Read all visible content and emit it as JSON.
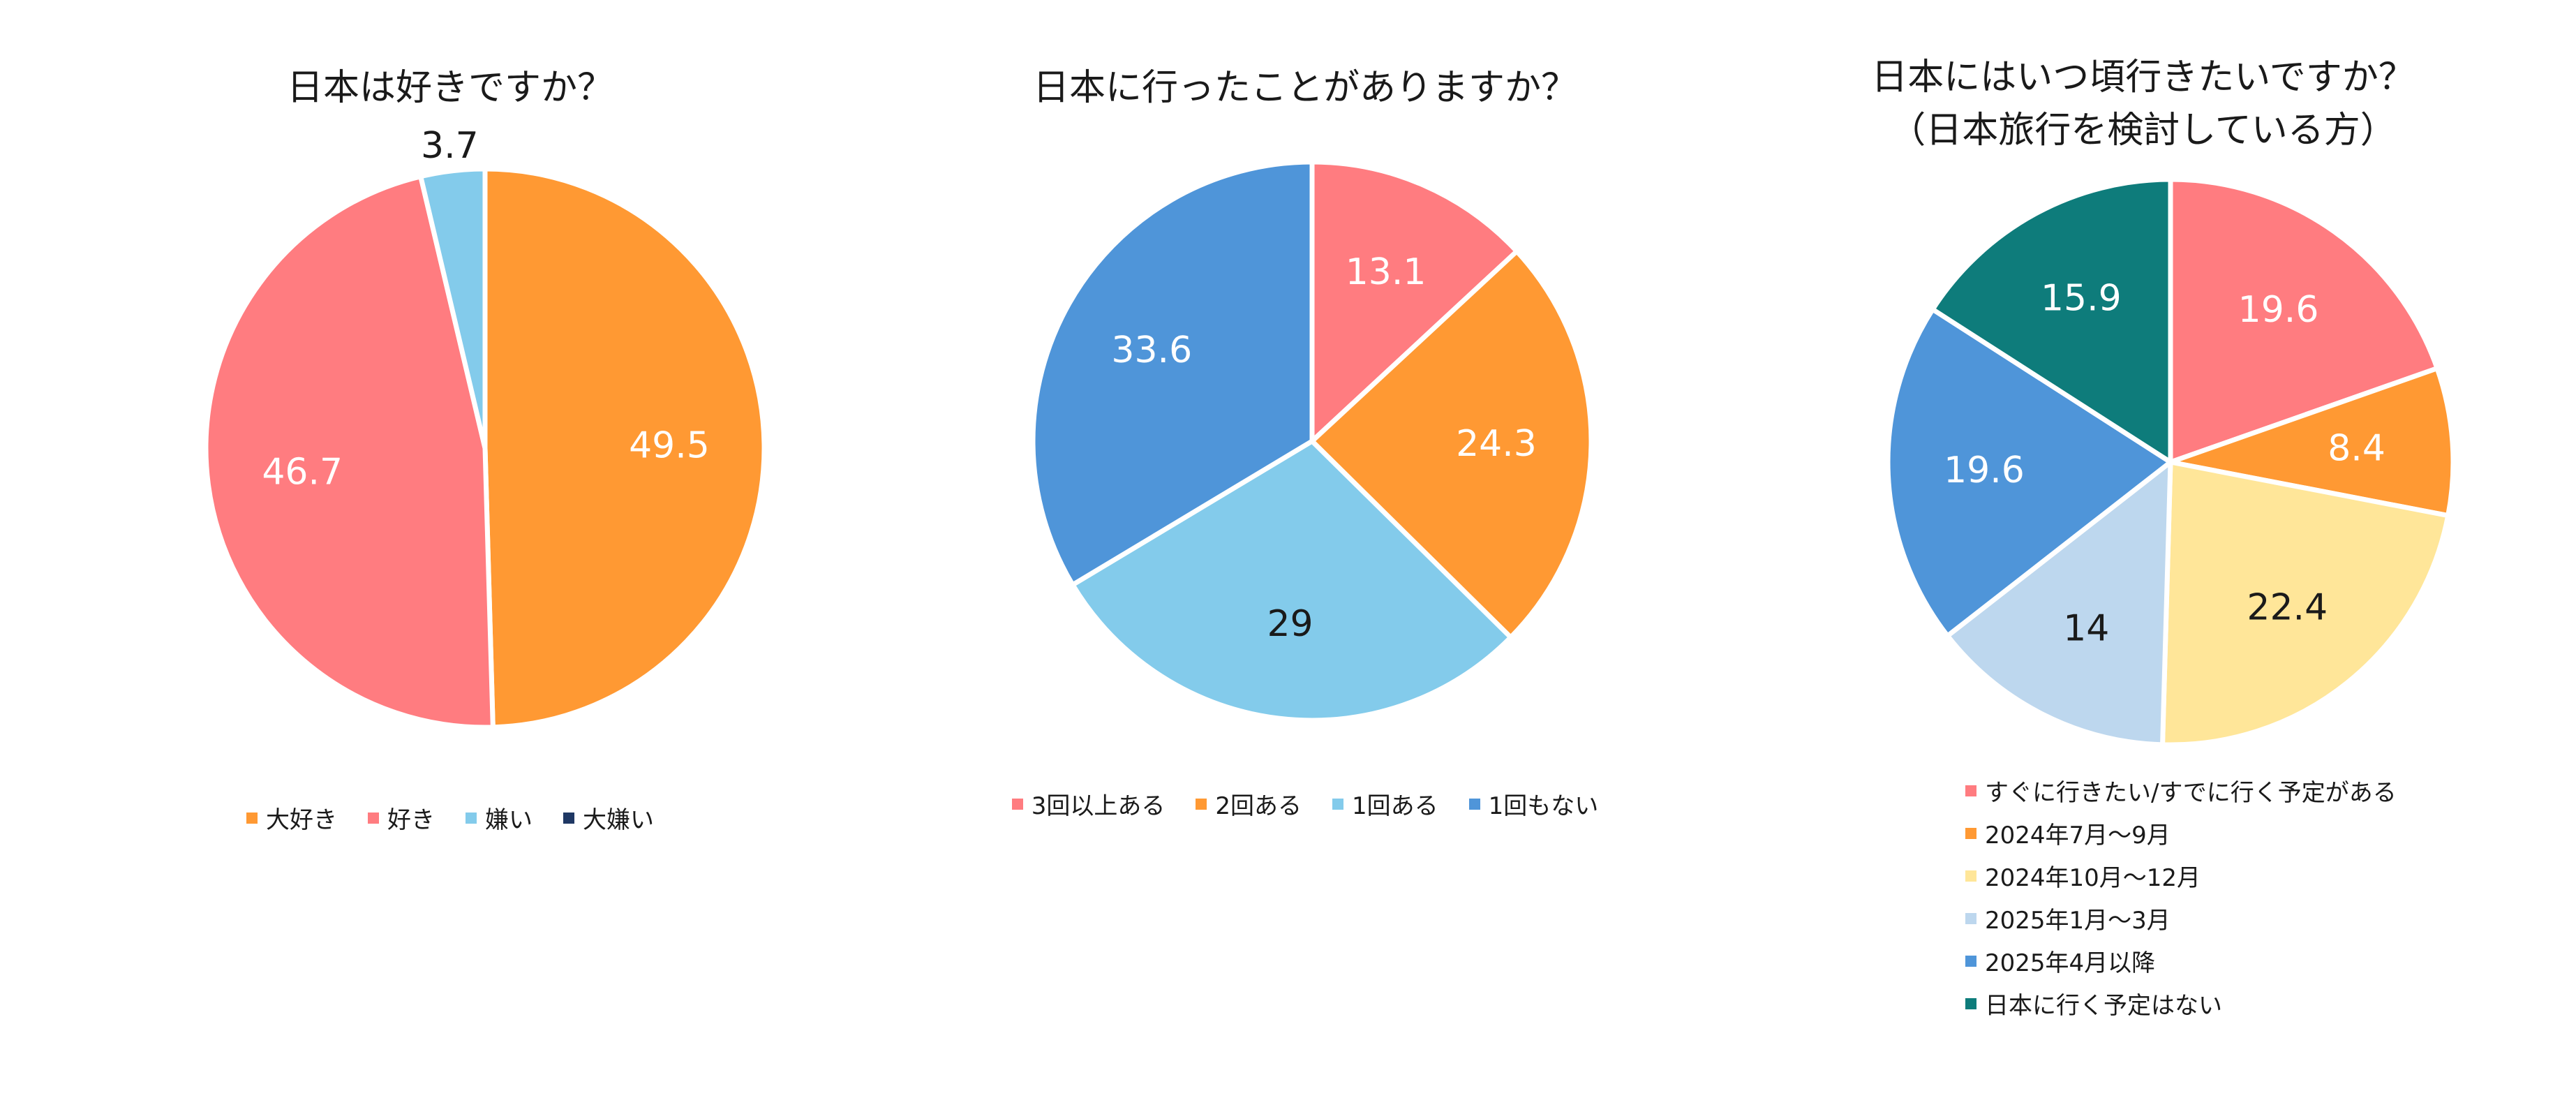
{
  "chart_data": [
    {
      "type": "pie",
      "title": "日本は好きですか？",
      "categories": [
        "大好き",
        "好き",
        "嫌い",
        "大嫌い"
      ],
      "values": [
        49.5,
        46.7,
        3.7,
        0
      ],
      "labels": [
        "49.5",
        "46.7",
        "3.7",
        ""
      ],
      "colors": [
        "#FF9933",
        "#FF7C80",
        "#83CBEB",
        "#1F3864"
      ],
      "label_colors": [
        "#ffffff",
        "#ffffff",
        "#1a1a1a",
        "#1a1a1a"
      ],
      "legend_position": "bottom"
    },
    {
      "type": "pie",
      "title": "日本に行ったことがありますか？",
      "categories": [
        "3回以上ある",
        "2回ある",
        "1回ある",
        "1回もない"
      ],
      "values": [
        13.1,
        24.3,
        29,
        33.6
      ],
      "labels": [
        "13.1",
        "24.3",
        "29",
        "33.6"
      ],
      "colors": [
        "#FF7C80",
        "#FF9933",
        "#83CBEB",
        "#4F95D9"
      ],
      "label_colors": [
        "#ffffff",
        "#ffffff",
        "#1a1a1a",
        "#ffffff"
      ],
      "legend_position": "bottom"
    },
    {
      "type": "pie",
      "title": "日本にはいつ頃行きたいですか？",
      "subtitle": "（日本旅行を検討している方）",
      "categories": [
        "すぐに行きたい/すでに行く予定がある",
        "2024年7月～9月",
        "2024年10月～12月",
        "2025年1月～3月",
        "2025年4月以降",
        "日本に行く予定はない"
      ],
      "values": [
        19.6,
        8.4,
        22.4,
        14,
        19.6,
        15.9
      ],
      "labels": [
        "19.6",
        "8.4",
        "22.4",
        "14",
        "19.6",
        "15.9"
      ],
      "colors": [
        "#FF7C80",
        "#FF9933",
        "#FFE699",
        "#BDD7EE",
        "#4F95D9",
        "#0E7C7B"
      ],
      "label_colors": [
        "#ffffff",
        "#ffffff",
        "#1a1a1a",
        "#1a1a1a",
        "#ffffff",
        "#ffffff"
      ],
      "legend_position": "bottom"
    }
  ]
}
